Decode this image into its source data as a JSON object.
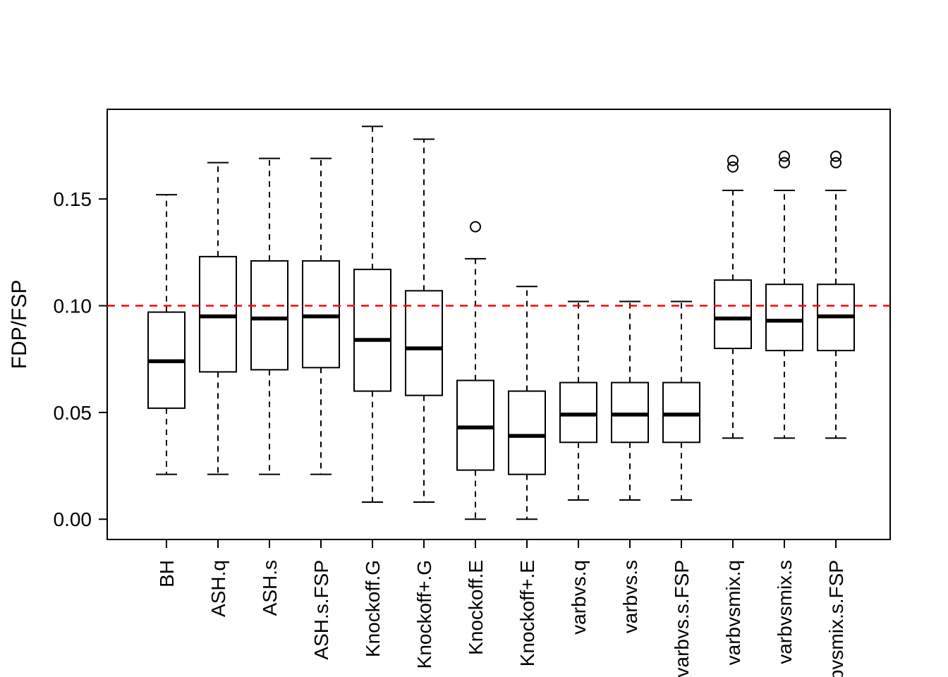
{
  "figure": {
    "background_color": "#ffffff",
    "axis_color": "#000000"
  },
  "chart_data": {
    "type": "boxplot",
    "title": "",
    "xlabel": "",
    "ylabel": "FDP/FSP",
    "ylim": [
      -0.0095,
      0.192
    ],
    "yticks": [
      0,
      0.05,
      0.1,
      0.15
    ],
    "ytick_labels": [
      "0.00",
      "0.05",
      "0.10",
      "0.15"
    ],
    "grid": false,
    "legend": "none",
    "reference_line": {
      "y": 0.1,
      "color": "#ff0000",
      "style": "dashed"
    },
    "categories": [
      "BH",
      "ASH.q",
      "ASH.s",
      "ASH.s.FSP",
      "Knockoff.G",
      "Knockoff+.G",
      "Knockoff.E",
      "Knockoff+.E",
      "varbvs.q",
      "varbvs.s",
      "varbvs.s.FSP",
      "varbvsmix.q",
      "varbvsmix.s",
      "varbvsmix.s.FSP"
    ],
    "boxes": [
      {
        "method": "BH",
        "whisker_low": 0.021,
        "q1": 0.052,
        "median": 0.074,
        "q3": 0.097,
        "whisker_high": 0.152,
        "outliers": []
      },
      {
        "method": "ASH.q",
        "whisker_low": 0.021,
        "q1": 0.069,
        "median": 0.095,
        "q3": 0.123,
        "whisker_high": 0.167,
        "outliers": []
      },
      {
        "method": "ASH.s",
        "whisker_low": 0.021,
        "q1": 0.07,
        "median": 0.094,
        "q3": 0.121,
        "whisker_high": 0.169,
        "outliers": []
      },
      {
        "method": "ASH.s.FSP",
        "whisker_low": 0.021,
        "q1": 0.071,
        "median": 0.095,
        "q3": 0.121,
        "whisker_high": 0.169,
        "outliers": []
      },
      {
        "method": "Knockoff.G",
        "whisker_low": 0.008,
        "q1": 0.06,
        "median": 0.084,
        "q3": 0.117,
        "whisker_high": 0.184,
        "outliers": []
      },
      {
        "method": "Knockoff+.G",
        "whisker_low": 0.008,
        "q1": 0.058,
        "median": 0.08,
        "q3": 0.107,
        "whisker_high": 0.178,
        "outliers": []
      },
      {
        "method": "Knockoff.E",
        "whisker_low": 0.0,
        "q1": 0.023,
        "median": 0.043,
        "q3": 0.065,
        "whisker_high": 0.122,
        "outliers": [
          0.137
        ]
      },
      {
        "method": "Knockoff+.E",
        "whisker_low": 0.0,
        "q1": 0.021,
        "median": 0.039,
        "q3": 0.06,
        "whisker_high": 0.109,
        "outliers": []
      },
      {
        "method": "varbvs.q",
        "whisker_low": 0.009,
        "q1": 0.036,
        "median": 0.049,
        "q3": 0.064,
        "whisker_high": 0.102,
        "outliers": []
      },
      {
        "method": "varbvs.s",
        "whisker_low": 0.009,
        "q1": 0.036,
        "median": 0.049,
        "q3": 0.064,
        "whisker_high": 0.102,
        "outliers": []
      },
      {
        "method": "varbvs.s.FSP",
        "whisker_low": 0.009,
        "q1": 0.036,
        "median": 0.049,
        "q3": 0.064,
        "whisker_high": 0.102,
        "outliers": []
      },
      {
        "method": "varbvsmix.q",
        "whisker_low": 0.038,
        "q1": 0.08,
        "median": 0.094,
        "q3": 0.112,
        "whisker_high": 0.154,
        "outliers": [
          0.165,
          0.168
        ]
      },
      {
        "method": "varbvsmix.s",
        "whisker_low": 0.038,
        "q1": 0.079,
        "median": 0.093,
        "q3": 0.11,
        "whisker_high": 0.154,
        "outliers": [
          0.167,
          0.17
        ]
      },
      {
        "method": "varbvsmix.s.FSP",
        "whisker_low": 0.038,
        "q1": 0.079,
        "median": 0.095,
        "q3": 0.11,
        "whisker_high": 0.154,
        "outliers": [
          0.167,
          0.17
        ]
      }
    ],
    "style": {
      "box_fill": "#ffffff",
      "box_stroke": "#000000",
      "median_stroke": "#000000",
      "whisker_style": "dashed",
      "outlier_marker": "open-circle"
    }
  }
}
